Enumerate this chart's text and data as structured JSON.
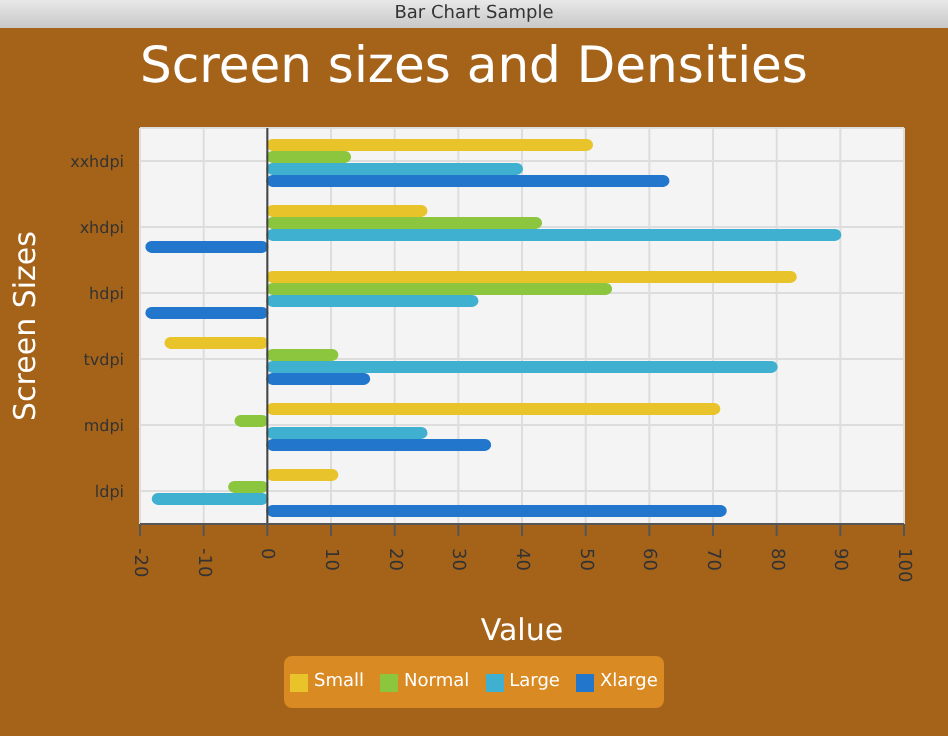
{
  "chart_data": {
    "type": "bar",
    "orientation": "horizontal",
    "title": "Screen sizes and Densities",
    "xlabel": "Value",
    "ylabel": "Screen Sizes",
    "annotations": [
      "Bar Chart Sample"
    ],
    "categories": [
      "xxhdpi",
      "xhdpi",
      "hdpi",
      "tvdpi",
      "mdpi",
      "ldpi"
    ],
    "series": [
      {
        "name": "Small",
        "color": "#e8c42a",
        "values": [
          51,
          25,
          83,
          -16,
          71,
          11
        ]
      },
      {
        "name": "Normal",
        "color": "#8cc63f",
        "values": [
          13,
          43,
          54,
          11,
          -5,
          -6
        ]
      },
      {
        "name": "Large",
        "color": "#3fb0d0",
        "values": [
          40,
          90,
          33,
          80,
          25,
          -18
        ]
      },
      {
        "name": "Xlarge",
        "color": "#2277cc",
        "values": [
          63,
          -19,
          -19,
          16,
          35,
          72
        ]
      }
    ],
    "xlim": [
      -20,
      100
    ],
    "xticks": [
      -20,
      -10,
      0,
      10,
      20,
      30,
      40,
      50,
      60,
      70,
      80,
      90,
      100
    ],
    "grid": true,
    "legend": "bottom"
  }
}
